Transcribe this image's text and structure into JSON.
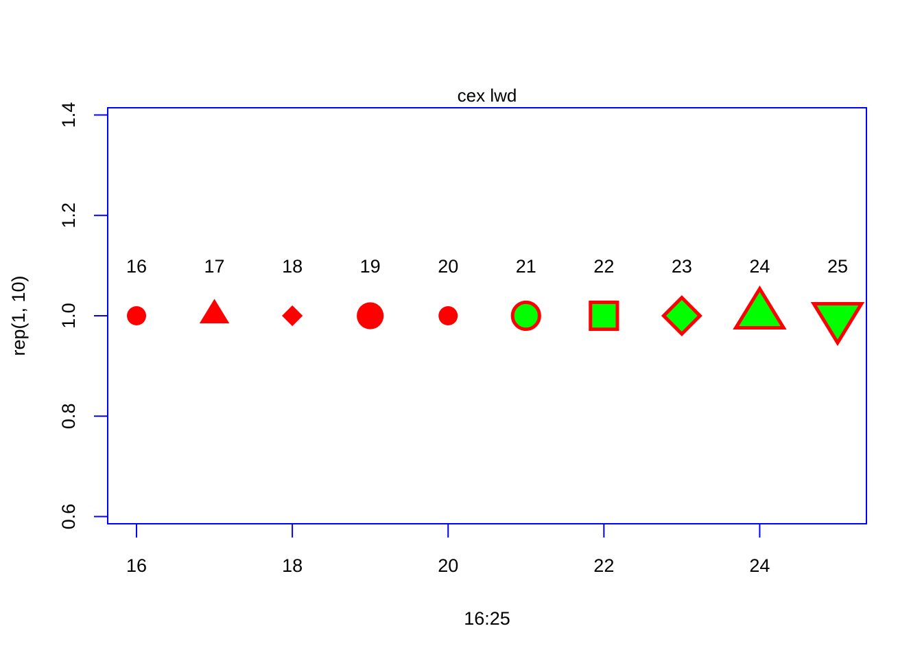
{
  "chart_data": {
    "type": "scatter",
    "title": "cex lwd",
    "xlabel": "16:25",
    "ylabel": "rep(1, 10)",
    "xlim": [
      15.63,
      25.37
    ],
    "ylim": [
      0.5857,
      1.4143
    ],
    "x_ticks": [
      16,
      18,
      20,
      22,
      24
    ],
    "y_ticks": [
      0.6,
      0.8,
      1.0,
      1.2,
      1.4
    ],
    "x_tick_labels": [
      "16",
      "18",
      "20",
      "22",
      "24"
    ],
    "y_tick_labels": [
      "0.6",
      "0.8",
      "1.0",
      "1.2",
      "1.4"
    ],
    "axis_color": "#0000ff",
    "box_color": "#0000ff",
    "points": [
      {
        "x": 16,
        "y": 1.0,
        "pch": 16,
        "shape": "circle-solid",
        "size": 1.0,
        "col": "#ff0000",
        "bg": null,
        "label": "16"
      },
      {
        "x": 17,
        "y": 1.0,
        "pch": 17,
        "shape": "triangle-solid",
        "size": 1.0,
        "col": "#ff0000",
        "bg": null,
        "label": "17"
      },
      {
        "x": 18,
        "y": 1.0,
        "pch": 18,
        "shape": "diamond-solid",
        "size": 0.8,
        "col": "#ff0000",
        "bg": null,
        "label": "18"
      },
      {
        "x": 19,
        "y": 1.0,
        "pch": 19,
        "shape": "circle-solid",
        "size": 1.4,
        "col": "#ff0000",
        "bg": null,
        "label": "19"
      },
      {
        "x": 20,
        "y": 1.0,
        "pch": 20,
        "shape": "circle-solid",
        "size": 1.0,
        "col": "#ff0000",
        "bg": null,
        "label": "20"
      },
      {
        "x": 21,
        "y": 1.0,
        "pch": 21,
        "shape": "circle-filled",
        "size": 1.4,
        "col": "#ff0000",
        "bg": "#00ff00",
        "label": "21"
      },
      {
        "x": 22,
        "y": 1.0,
        "pch": 22,
        "shape": "square-filled",
        "size": 1.4,
        "col": "#ff0000",
        "bg": "#00ff00",
        "label": "22"
      },
      {
        "x": 23,
        "y": 1.0,
        "pch": 23,
        "shape": "diamond-filled",
        "size": 1.4,
        "col": "#ff0000",
        "bg": "#00ff00",
        "label": "23"
      },
      {
        "x": 24,
        "y": 1.0,
        "pch": 24,
        "shape": "triangle-up-filled",
        "size": 1.6,
        "col": "#ff0000",
        "bg": "#00ff00",
        "label": "24"
      },
      {
        "x": 25,
        "y": 1.0,
        "pch": 25,
        "shape": "triangle-down-filled",
        "size": 1.6,
        "col": "#ff0000",
        "bg": "#00ff00",
        "label": "25"
      }
    ],
    "label_offset_y": 0.1,
    "grid": false,
    "legend": "none"
  }
}
